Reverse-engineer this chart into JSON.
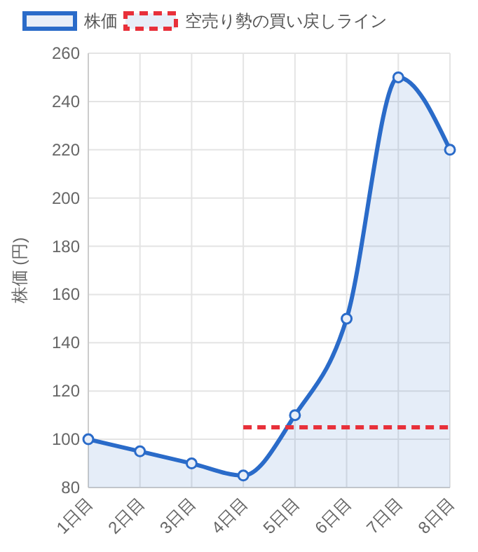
{
  "chart_data": {
    "type": "area",
    "ylabel": "株価 (円)",
    "categories": [
      "1日目",
      "2日目",
      "3日目",
      "4日目",
      "5日目",
      "6日目",
      "7日目",
      "8日目"
    ],
    "series": [
      {
        "name": "株価",
        "color": "#2a6bc9",
        "marker": "circle",
        "line_style": "solid",
        "values": [
          100,
          95,
          90,
          85,
          110,
          150,
          250,
          220
        ]
      },
      {
        "name": "空売り勢の買い戻しライン",
        "type": "line",
        "color": "#e8303a",
        "marker": "none",
        "line_style": "dashed",
        "values": [
          null,
          null,
          null,
          105,
          105,
          105,
          105,
          105
        ]
      }
    ],
    "ylim": [
      80,
      260
    ],
    "yticks": [
      80,
      100,
      120,
      140,
      160,
      180,
      200,
      220,
      240,
      260
    ],
    "grid": true,
    "legend": "top"
  }
}
